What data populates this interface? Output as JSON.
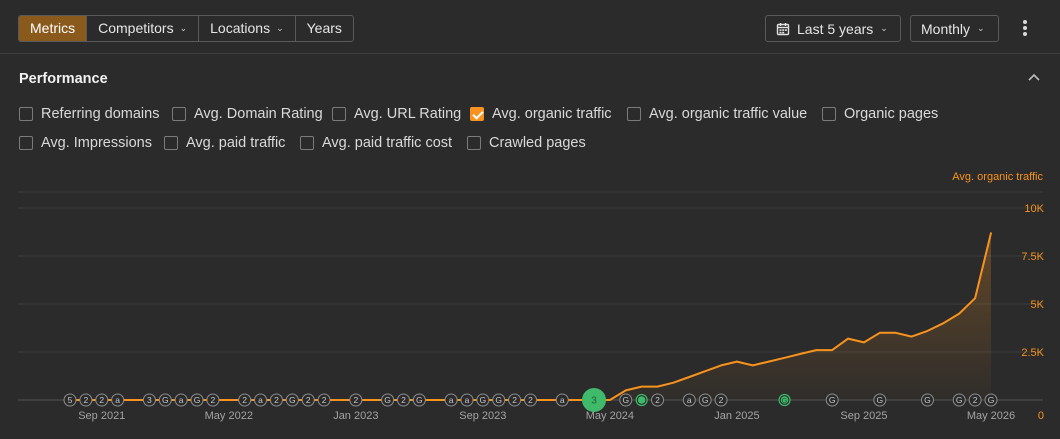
{
  "toolbar": {
    "tabs": [
      {
        "label": "Metrics",
        "active": true
      },
      {
        "label": "Competitors",
        "dropdown": true
      },
      {
        "label": "Locations",
        "dropdown": true
      },
      {
        "label": "Years"
      }
    ],
    "period_label": "Last 5 years",
    "interval_label": "Monthly"
  },
  "panel": {
    "title": "Performance",
    "metrics": [
      {
        "label": "Referring domains",
        "checked": false
      },
      {
        "label": "Avg. Domain Rating",
        "checked": false
      },
      {
        "label": "Avg. URL Rating",
        "checked": false
      },
      {
        "label": "Avg. organic traffic",
        "checked": true
      },
      {
        "label": "Avg. organic traffic value",
        "checked": false
      },
      {
        "label": "Organic pages",
        "checked": false
      },
      {
        "label": "Avg. Impressions",
        "checked": false
      },
      {
        "label": "Avg. paid traffic",
        "checked": false
      },
      {
        "label": "Avg. paid traffic cost",
        "checked": false
      },
      {
        "label": "Crawled pages",
        "checked": false
      }
    ]
  },
  "colors": {
    "accent": "#f7931e",
    "active_tab": "#8a5a1c",
    "marker_green": "#3fb96a",
    "background": "#2b2b2b"
  },
  "chart_data": {
    "type": "area",
    "series": [
      {
        "name": "Avg. organic traffic",
        "x": [
          "2021-07",
          "2021-08",
          "2021-09",
          "2021-10",
          "2021-11",
          "2021-12",
          "2022-01",
          "2022-02",
          "2022-03",
          "2022-04",
          "2022-05",
          "2022-06",
          "2022-07",
          "2022-08",
          "2022-09",
          "2022-10",
          "2022-11",
          "2022-12",
          "2023-01",
          "2023-02",
          "2023-03",
          "2023-04",
          "2023-05",
          "2023-06",
          "2023-07",
          "2023-08",
          "2023-09",
          "2023-10",
          "2023-11",
          "2023-12",
          "2024-01",
          "2024-02",
          "2024-03",
          "2024-04",
          "2024-05",
          "2024-06",
          "2024-07",
          "2024-08",
          "2024-09",
          "2024-10",
          "2024-11",
          "2024-12",
          "2025-01",
          "2025-02",
          "2025-03",
          "2025-04",
          "2025-05",
          "2025-06",
          "2025-07",
          "2025-08",
          "2025-09",
          "2025-10",
          "2025-11",
          "2025-12",
          "2026-01",
          "2026-02",
          "2026-03",
          "2026-04",
          "2026-05"
        ],
        "values": [
          0,
          0,
          0,
          0,
          0,
          0,
          0,
          0,
          0,
          0,
          0,
          0,
          0,
          0,
          0,
          0,
          0,
          0,
          0,
          0,
          0,
          0,
          0,
          0,
          0,
          0,
          0,
          0,
          0,
          0,
          0,
          0,
          0,
          0,
          0,
          500,
          700,
          700,
          900,
          1200,
          1500,
          1800,
          2000,
          1800,
          2000,
          2200,
          2400,
          2600,
          2600,
          3200,
          3000,
          3500,
          3500,
          3300,
          3600,
          4000,
          4500,
          5300,
          8700
        ]
      }
    ],
    "y_ticks": [
      "0",
      "2.5K",
      "5K",
      "7.5K",
      "10K"
    ],
    "ylim": [
      0,
      10000
    ],
    "x_ticks": [
      {
        "date": "2021-09",
        "label": "Sep 2021"
      },
      {
        "date": "2022-05",
        "label": "May 2022"
      },
      {
        "date": "2023-01",
        "label": "Jan 2023"
      },
      {
        "date": "2023-09",
        "label": "Sep 2023"
      },
      {
        "date": "2024-05",
        "label": "May 2024"
      },
      {
        "date": "2025-01",
        "label": "Jan 2025"
      },
      {
        "date": "2025-09",
        "label": "Sep 2025"
      },
      {
        "date": "2026-05",
        "label": "May 2026"
      }
    ],
    "annotations": [
      {
        "date": "2021-07",
        "text": "5"
      },
      {
        "date": "2021-08",
        "text": "2"
      },
      {
        "date": "2021-09",
        "text": "2"
      },
      {
        "date": "2021-10",
        "text": "a"
      },
      {
        "date": "2021-12",
        "text": "3"
      },
      {
        "date": "2022-01",
        "text": "G"
      },
      {
        "date": "2022-02",
        "text": "a"
      },
      {
        "date": "2022-03",
        "text": "G"
      },
      {
        "date": "2022-04",
        "text": "2"
      },
      {
        "date": "2022-06",
        "text": "2"
      },
      {
        "date": "2022-07",
        "text": "a"
      },
      {
        "date": "2022-08",
        "text": "2"
      },
      {
        "date": "2022-09",
        "text": "G"
      },
      {
        "date": "2022-10",
        "text": "2"
      },
      {
        "date": "2022-11",
        "text": "2"
      },
      {
        "date": "2023-01",
        "text": "2"
      },
      {
        "date": "2023-03",
        "text": "G"
      },
      {
        "date": "2023-04",
        "text": "2"
      },
      {
        "date": "2023-05",
        "text": "G"
      },
      {
        "date": "2023-07",
        "text": "a"
      },
      {
        "date": "2023-08",
        "text": "a"
      },
      {
        "date": "2023-09",
        "text": "G"
      },
      {
        "date": "2023-10",
        "text": "G"
      },
      {
        "date": "2023-11",
        "text": "2"
      },
      {
        "date": "2023-12",
        "text": "2"
      },
      {
        "date": "2024-02",
        "text": "a"
      },
      {
        "date": "2024-04",
        "text": "3",
        "highlight": "large"
      },
      {
        "date": "2024-06",
        "text": "G"
      },
      {
        "date": "2024-07",
        "text": "",
        "highlight": "green"
      },
      {
        "date": "2024-08",
        "text": "2"
      },
      {
        "date": "2024-10",
        "text": "a"
      },
      {
        "date": "2024-11",
        "text": "G"
      },
      {
        "date": "2024-12",
        "text": "2"
      },
      {
        "date": "2025-04",
        "text": "G",
        "highlight": "green"
      },
      {
        "date": "2025-07",
        "text": "G"
      },
      {
        "date": "2025-10",
        "text": "G"
      },
      {
        "date": "2026-01",
        "text": "G"
      },
      {
        "date": "2026-03",
        "text": "G"
      },
      {
        "date": "2026-04",
        "text": "2"
      },
      {
        "date": "2026-05",
        "text": "G"
      }
    ]
  }
}
